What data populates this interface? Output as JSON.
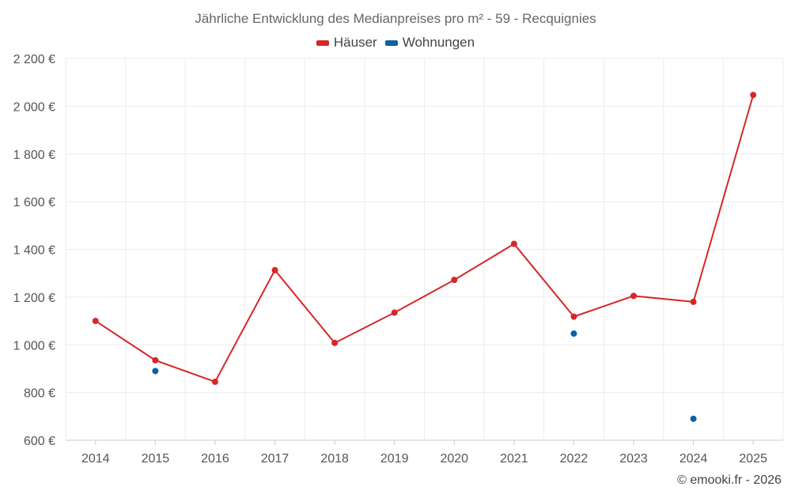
{
  "chart_data": {
    "type": "line",
    "title": "Jährliche Entwicklung des Medianpreises pro m² - 59 - Recquignies",
    "categories": [
      "2014",
      "2015",
      "2016",
      "2017",
      "2018",
      "2019",
      "2020",
      "2021",
      "2022",
      "2023",
      "2024",
      "2025"
    ],
    "ylim": [
      600,
      2200
    ],
    "yticks": [
      600,
      800,
      1000,
      1200,
      1400,
      1600,
      1800,
      2000,
      2200
    ],
    "ytick_labels": [
      "600 €",
      "800 €",
      "1 000 €",
      "1 200 €",
      "1 400 €",
      "1 600 €",
      "1 800 €",
      "2 000 €",
      "2 200 €"
    ],
    "series": [
      {
        "name": "Häuser",
        "color": "#d62728",
        "values": [
          1100,
          935,
          845,
          1313,
          1008,
          1135,
          1272,
          1423,
          1118,
          1205,
          1180,
          2047
        ]
      },
      {
        "name": "Wohnungen",
        "color": "#0b61a4",
        "values": [
          null,
          890,
          null,
          null,
          null,
          null,
          null,
          null,
          1047,
          null,
          690,
          null
        ]
      }
    ],
    "grid": true,
    "legend": "top-center"
  },
  "credit": "© emooki.fr - 2026"
}
